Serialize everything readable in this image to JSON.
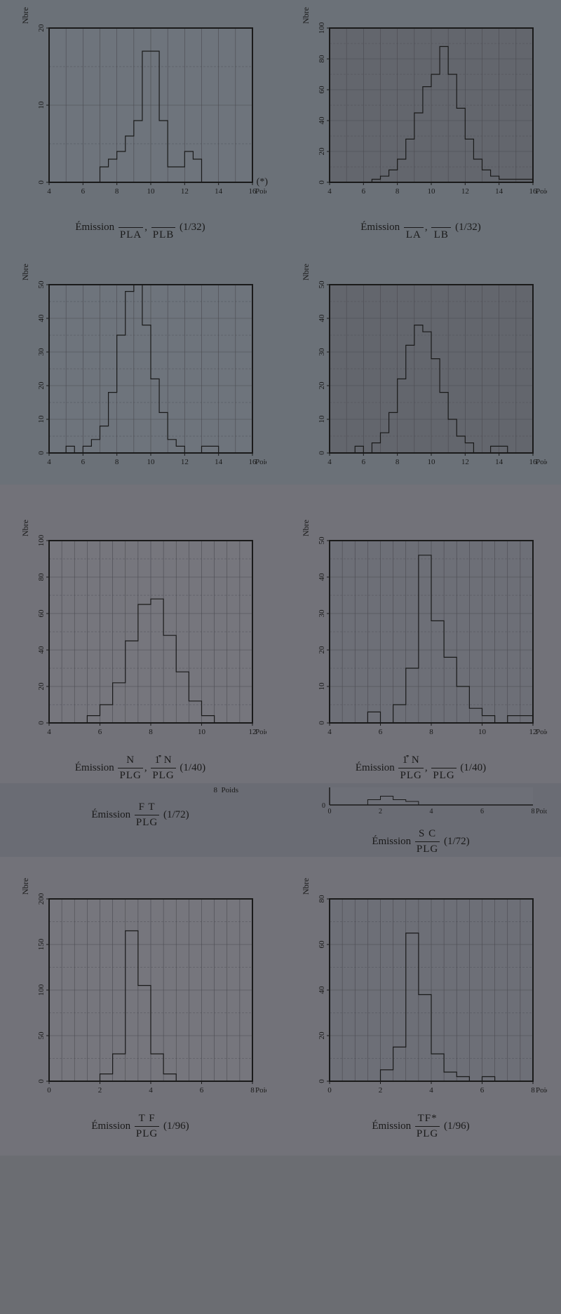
{
  "page": {
    "bg": "#6b6d72",
    "ylabel": "Nbre d'ex.",
    "xlabel": "Poids",
    "emission_word": "Émission"
  },
  "style": {
    "axis_color": "#1a1a1a",
    "grid_color": "#4a4a50",
    "line_color": "#1a1a1a",
    "tick_fontsize": 11,
    "label_fontsize": 12,
    "chart_bg_a": "#6e747c",
    "chart_bg_b": "#63666d",
    "chart_bg_c": "#76767d",
    "chart_bg_d": "#6d6f77"
  },
  "charts": [
    {
      "id": "c1",
      "bg": "#6e747c",
      "x_domain": [
        4,
        16
      ],
      "x_ticks": [
        4,
        6,
        8,
        10,
        12,
        14,
        16
      ],
      "y_domain": [
        0,
        20
      ],
      "y_ticks": [
        0,
        10,
        20
      ],
      "bins": [
        [
          4,
          0
        ],
        [
          5,
          0
        ],
        [
          6,
          0
        ],
        [
          6.5,
          0
        ],
        [
          7,
          2
        ],
        [
          7.5,
          3
        ],
        [
          8,
          4
        ],
        [
          8.5,
          6
        ],
        [
          9,
          8
        ],
        [
          9.5,
          17
        ],
        [
          10,
          17
        ],
        [
          10.5,
          8
        ],
        [
          11,
          2
        ],
        [
          11.5,
          2
        ],
        [
          12,
          4
        ],
        [
          12.5,
          3
        ],
        [
          13,
          0
        ],
        [
          13.5,
          0
        ],
        [
          14,
          0
        ],
        [
          16,
          0
        ]
      ],
      "caption_pre": "",
      "frac_n": "",
      "frac_d": "PLA",
      "sep": ", ",
      "frac2_n": "",
      "frac2_d": "PLB",
      "ratio": "(1/32)",
      "extra": "(*)"
    },
    {
      "id": "c2",
      "bg": "#63666d",
      "x_domain": [
        4,
        16
      ],
      "x_ticks": [
        4,
        6,
        8,
        10,
        12,
        14,
        16
      ],
      "y_domain": [
        0,
        100
      ],
      "y_ticks": [
        0,
        20,
        40,
        60,
        80,
        100
      ],
      "bins": [
        [
          4,
          0
        ],
        [
          6,
          0
        ],
        [
          6.5,
          2
        ],
        [
          7,
          4
        ],
        [
          7.5,
          8
        ],
        [
          8,
          15
        ],
        [
          8.5,
          28
        ],
        [
          9,
          45
        ],
        [
          9.5,
          62
        ],
        [
          10,
          70
        ],
        [
          10.5,
          88
        ],
        [
          11,
          70
        ],
        [
          11.5,
          48
        ],
        [
          12,
          28
        ],
        [
          12.5,
          15
        ],
        [
          13,
          8
        ],
        [
          13.5,
          4
        ],
        [
          14,
          2
        ],
        [
          16,
          0
        ]
      ],
      "caption_pre": "",
      "frac_n": "",
      "frac_d": "LA",
      "sep": ", ",
      "frac2_n": "",
      "frac2_d": "LB",
      "ratio": "(1/32)"
    },
    {
      "id": "c3",
      "bg": "#6e747c",
      "x_domain": [
        4,
        16
      ],
      "x_ticks": [
        4,
        6,
        8,
        10,
        12,
        14,
        16
      ],
      "y_domain": [
        0,
        50
      ],
      "y_ticks": [
        0,
        10,
        20,
        30,
        40,
        50
      ],
      "bins": [
        [
          4,
          0
        ],
        [
          5,
          2
        ],
        [
          5.5,
          0
        ],
        [
          6,
          2
        ],
        [
          6.5,
          4
        ],
        [
          7,
          8
        ],
        [
          7.5,
          18
        ],
        [
          8,
          35
        ],
        [
          8.5,
          48
        ],
        [
          9,
          50
        ],
        [
          9.5,
          38
        ],
        [
          10,
          22
        ],
        [
          10.5,
          12
        ],
        [
          11,
          4
        ],
        [
          11.5,
          2
        ],
        [
          12,
          0
        ],
        [
          12.5,
          0
        ],
        [
          13,
          2
        ],
        [
          13.5,
          2
        ],
        [
          14,
          0
        ],
        [
          16,
          0
        ]
      ],
      "caption_pre": "",
      "frac_n": "",
      "frac_d": "",
      "ratio": ""
    },
    {
      "id": "c4",
      "bg": "#63666d",
      "x_domain": [
        4,
        16
      ],
      "x_ticks": [
        4,
        6,
        8,
        10,
        12,
        14,
        16
      ],
      "y_domain": [
        0,
        50
      ],
      "y_ticks": [
        0,
        10,
        20,
        30,
        40,
        50
      ],
      "bins": [
        [
          4,
          0
        ],
        [
          5,
          0
        ],
        [
          5.5,
          2
        ],
        [
          6,
          0
        ],
        [
          6.5,
          3
        ],
        [
          7,
          6
        ],
        [
          7.5,
          12
        ],
        [
          8,
          22
        ],
        [
          8.5,
          32
        ],
        [
          9,
          38
        ],
        [
          9.5,
          36
        ],
        [
          10,
          28
        ],
        [
          10.5,
          18
        ],
        [
          11,
          10
        ],
        [
          11.5,
          5
        ],
        [
          12,
          3
        ],
        [
          12.5,
          0
        ],
        [
          13,
          0
        ],
        [
          13.5,
          2
        ],
        [
          14,
          2
        ],
        [
          14.5,
          0
        ],
        [
          16,
          0
        ]
      ],
      "caption_pre": "",
      "frac_n": "",
      "frac_d": "",
      "ratio": ""
    },
    {
      "id": "c5",
      "bg": "#76767d",
      "x_domain": [
        4,
        12
      ],
      "x_ticks": [
        4,
        6,
        8,
        10,
        12
      ],
      "y_domain": [
        0,
        100
      ],
      "y_ticks": [
        0,
        20,
        40,
        60,
        80,
        100
      ],
      "bins": [
        [
          4,
          0
        ],
        [
          5,
          0
        ],
        [
          5.5,
          4
        ],
        [
          6,
          10
        ],
        [
          6.5,
          22
        ],
        [
          7,
          45
        ],
        [
          7.5,
          65
        ],
        [
          8,
          68
        ],
        [
          8.5,
          48
        ],
        [
          9,
          28
        ],
        [
          9.5,
          12
        ],
        [
          10,
          4
        ],
        [
          10.5,
          0
        ],
        [
          12,
          0
        ]
      ],
      "caption_pre": "",
      "frac_n": "N",
      "frac_d": "PLG",
      "sep": ", ",
      "frac2_n": "1͒ N",
      "frac2_d": "PLG",
      "ratio": "(1/40)"
    },
    {
      "id": "c6",
      "bg": "#6d6f77",
      "x_domain": [
        4,
        12
      ],
      "x_ticks": [
        4,
        6,
        8,
        10,
        12
      ],
      "y_domain": [
        0,
        50
      ],
      "y_ticks": [
        0,
        10,
        20,
        30,
        40,
        50
      ],
      "bins": [
        [
          4,
          0
        ],
        [
          5,
          0
        ],
        [
          5.5,
          3
        ],
        [
          6,
          0
        ],
        [
          6.5,
          5
        ],
        [
          7,
          15
        ],
        [
          7.5,
          46
        ],
        [
          8,
          28
        ],
        [
          8.5,
          18
        ],
        [
          9,
          10
        ],
        [
          9.5,
          4
        ],
        [
          10,
          2
        ],
        [
          10.5,
          0
        ],
        [
          11,
          2
        ],
        [
          11.5,
          2
        ],
        [
          12,
          0
        ]
      ],
      "caption_pre": "",
      "frac_n": "1͒ N",
      "frac_d": "PLG",
      "sep": ", ",
      "frac2_n": "",
      "frac2_d": "PLG",
      "ratio": "(1/40)"
    },
    {
      "id": "c7a_caption_only",
      "frac_n": "F  T",
      "frac_d": "PLG",
      "ratio": "(1/72)"
    },
    {
      "id": "c7b_frag",
      "bg": "#6d6f77",
      "x_domain": [
        0,
        8
      ],
      "x_ticks": [
        0,
        2,
        4,
        6,
        8
      ],
      "y_domain": [
        0,
        10
      ],
      "y_ticks": [
        0
      ],
      "bins": [
        [
          0,
          0
        ],
        [
          1,
          0
        ],
        [
          1.5,
          3
        ],
        [
          2,
          5
        ],
        [
          2.5,
          3
        ],
        [
          3,
          2
        ],
        [
          3.5,
          0
        ],
        [
          8,
          0
        ]
      ]
    },
    {
      "id": "c7b_caption",
      "frac_n": "S  C",
      "frac_d": "PLG",
      "ratio": "(1/72)"
    },
    {
      "id": "c8",
      "bg": "#76767d",
      "x_domain": [
        0,
        8
      ],
      "x_ticks": [
        0,
        2,
        4,
        6,
        8
      ],
      "y_domain": [
        0,
        200
      ],
      "y_ticks": [
        0,
        50,
        100,
        150,
        200
      ],
      "bins": [
        [
          0,
          0
        ],
        [
          1.5,
          0
        ],
        [
          2,
          8
        ],
        [
          2.5,
          30
        ],
        [
          3,
          165
        ],
        [
          3.5,
          105
        ],
        [
          4,
          30
        ],
        [
          4.5,
          8
        ],
        [
          5,
          0
        ],
        [
          8,
          0
        ]
      ],
      "caption_pre": "",
      "frac_n": "T  F",
      "frac_d": "PLG",
      "ratio": "(1/96)"
    },
    {
      "id": "c9",
      "bg": "#6d6f77",
      "x_domain": [
        0,
        8
      ],
      "x_ticks": [
        0,
        2,
        4,
        6,
        8
      ],
      "y_domain": [
        0,
        80
      ],
      "y_ticks": [
        0,
        20,
        40,
        60,
        80
      ],
      "bins": [
        [
          0,
          0
        ],
        [
          1.5,
          0
        ],
        [
          2,
          5
        ],
        [
          2.5,
          15
        ],
        [
          3,
          65
        ],
        [
          3.5,
          38
        ],
        [
          4,
          12
        ],
        [
          4.5,
          4
        ],
        [
          5,
          2
        ],
        [
          5.5,
          0
        ],
        [
          6,
          2
        ],
        [
          6.5,
          0
        ],
        [
          8,
          0
        ]
      ],
      "caption_pre": "",
      "frac_n": "TF*",
      "frac_d": "PLG",
      "ratio": "(1/96)"
    }
  ]
}
